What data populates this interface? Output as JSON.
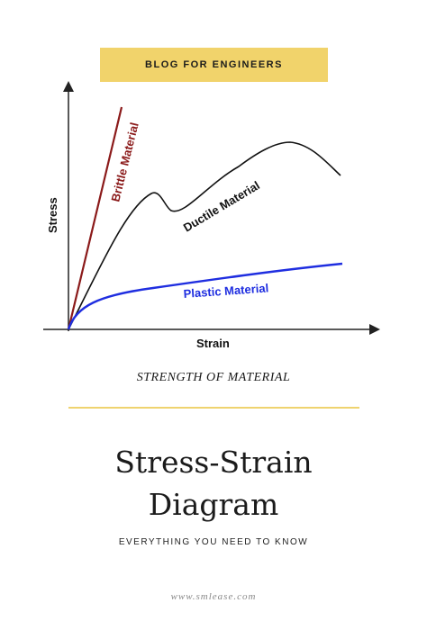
{
  "banner": {
    "text": "BLOG FOR ENGINEERS",
    "color": "#f1d36b"
  },
  "diagram": {
    "y_axis_label": "Stress",
    "x_axis_label": "Strain",
    "curves": [
      {
        "label": "Brittle Material",
        "color": "#8b1a1a"
      },
      {
        "label": "Ductile Material",
        "color": "#111111"
      },
      {
        "label": "Plastic Material",
        "color": "#1f2ee0"
      }
    ]
  },
  "subject": "STRENGTH OF MATERIAL",
  "divider_color": "#efd36f",
  "title": {
    "line1": "Stress-Strain",
    "line2": "Diagram"
  },
  "tagline": "EVERYTHING YOU NEED TO KNOW",
  "website": "www.smlease.com"
}
